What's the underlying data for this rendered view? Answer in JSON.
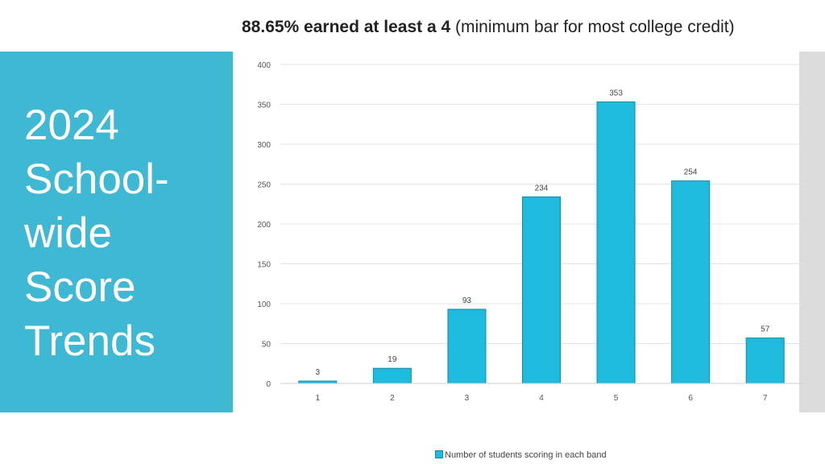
{
  "slide": {
    "title_bold": "88.65% earned at least a 4",
    "title_rest": " (minimum bar for most college credit)",
    "side_title": "2024\nSchool-\nwide\nScore\nTrends"
  },
  "colors": {
    "panel": "#3fb8d4",
    "bar": "#1fbbdf",
    "bar_edge": "#148aa6",
    "strip": "#dcdcdc"
  },
  "chart_data": {
    "type": "bar",
    "title": "88.65% earned at least a 4 (minimum bar for most college credit)",
    "categories": [
      "1",
      "2",
      "3",
      "4",
      "5",
      "6",
      "7"
    ],
    "series": [
      {
        "name": "Number of students scoring in each band",
        "values": [
          3,
          19,
          93,
          234,
          353,
          254,
          57
        ]
      }
    ],
    "data_labels": [
      "3",
      "19",
      "93",
      "234",
      "353",
      "254",
      "57"
    ],
    "yticks": [
      0,
      50,
      100,
      150,
      200,
      250,
      300,
      350,
      400
    ],
    "ylim": [
      0,
      400
    ],
    "xlabel": "",
    "ylabel": "",
    "grid": true,
    "legend": "bottom"
  }
}
